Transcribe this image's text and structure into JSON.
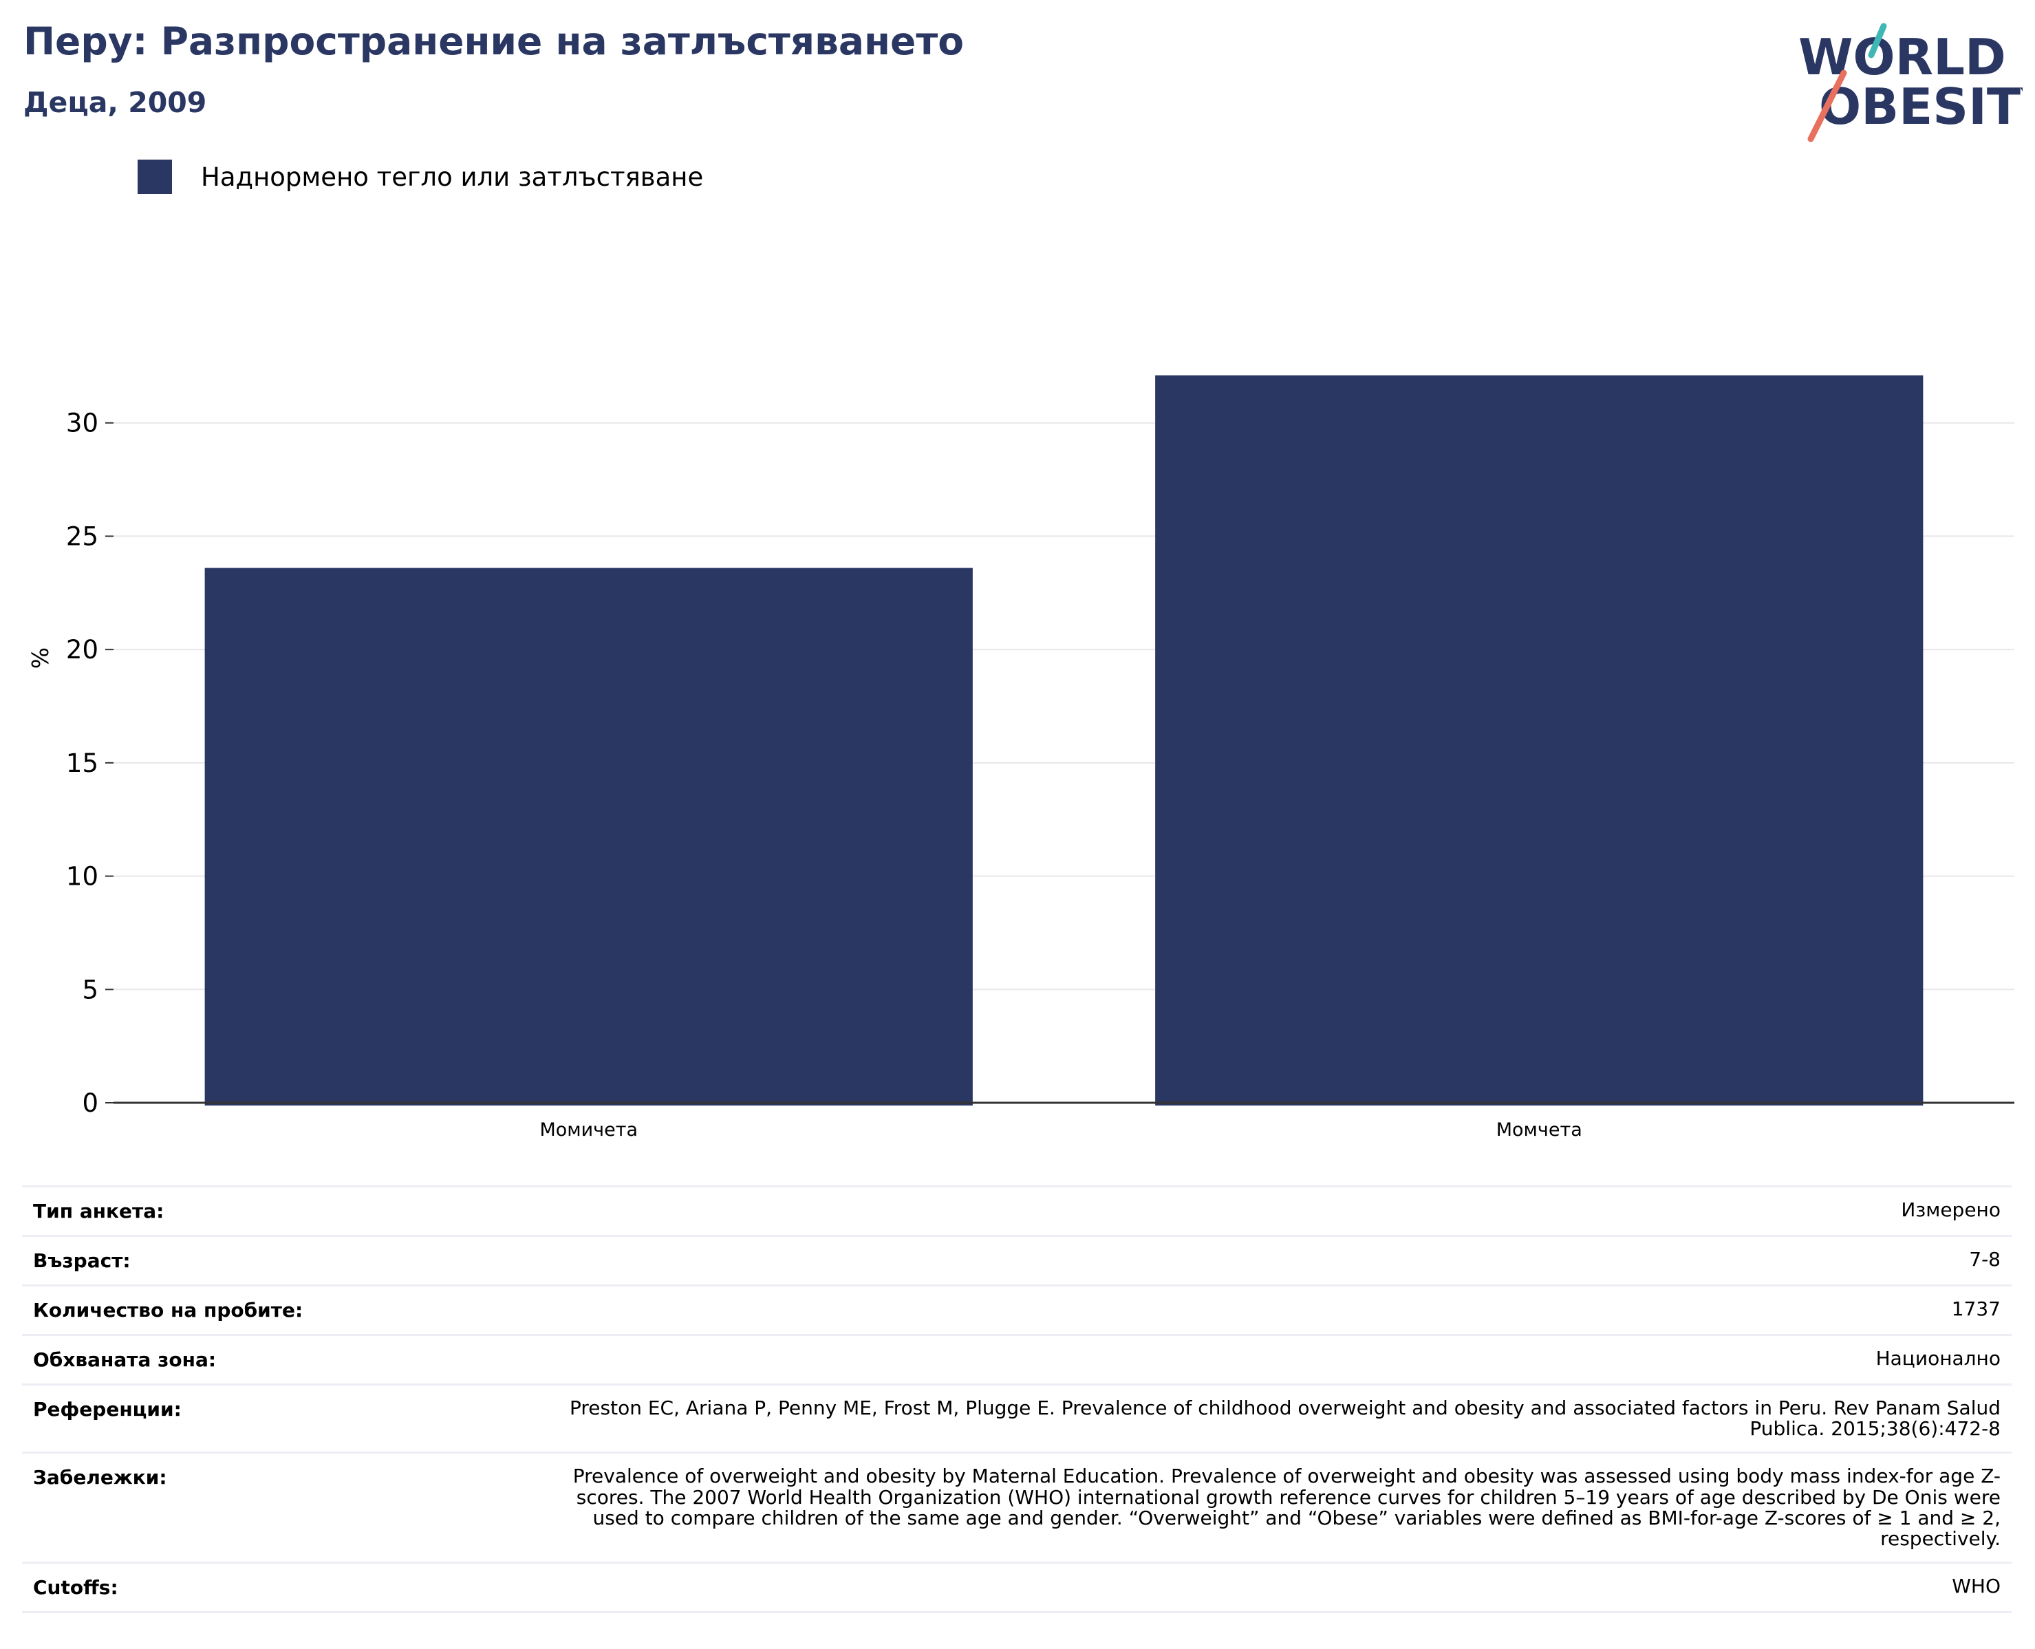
{
  "header": {
    "title": "Перу: Разпространение на затлъстяването",
    "subtitle": "Деца, 2009"
  },
  "logo": {
    "line1": "WORLD",
    "line2": "OBESITY",
    "color_text": "#2b3763",
    "color_teal": "#3fb8b5",
    "color_coral": "#e8705e"
  },
  "chart_data": {
    "type": "bar",
    "categories": [
      "Момичета",
      "Момчета"
    ],
    "series": [
      {
        "name": "Наднормено тегло или затлъстяване",
        "values": [
          23.6,
          32.1
        ],
        "color": "#2b3763"
      }
    ],
    "ylabel": "%",
    "ylim": [
      0,
      35
    ],
    "yticks": [
      0,
      5,
      10,
      15,
      20,
      25,
      30
    ],
    "grid": true,
    "legend": "top-left"
  },
  "details": [
    {
      "label": "Тип анкета:",
      "value": "Измерено"
    },
    {
      "label": "Възраст:",
      "value": "7-8"
    },
    {
      "label": "Количество на пробите:",
      "value": "1737"
    },
    {
      "label": "Обхваната зона:",
      "value": "Национално"
    },
    {
      "label": "Референции:",
      "value": "Preston EC, Ariana P, Penny ME, Frost M, Plugge E. Prevalence of childhood overweight and obesity and associated factors in Peru. Rev Panam Salud Publica. 2015;38(6):472-8"
    },
    {
      "label": "Забележки:",
      "value": "Prevalence of overweight and obesity by Maternal Education. Prevalence of overweight and obesity was assessed using body mass index-for age Z-scores. The 2007 World Health Organization (WHO) international growth reference curves for children 5–19 years of age described by De Onis were used to compare children of the same age and gender. “Overweight” and “Obese” variables were defined as BMI-for-age Z-scores of ≥ 1 and ≥ 2, respectively."
    },
    {
      "label": "Cutoffs:",
      "value": "WHO"
    }
  ]
}
